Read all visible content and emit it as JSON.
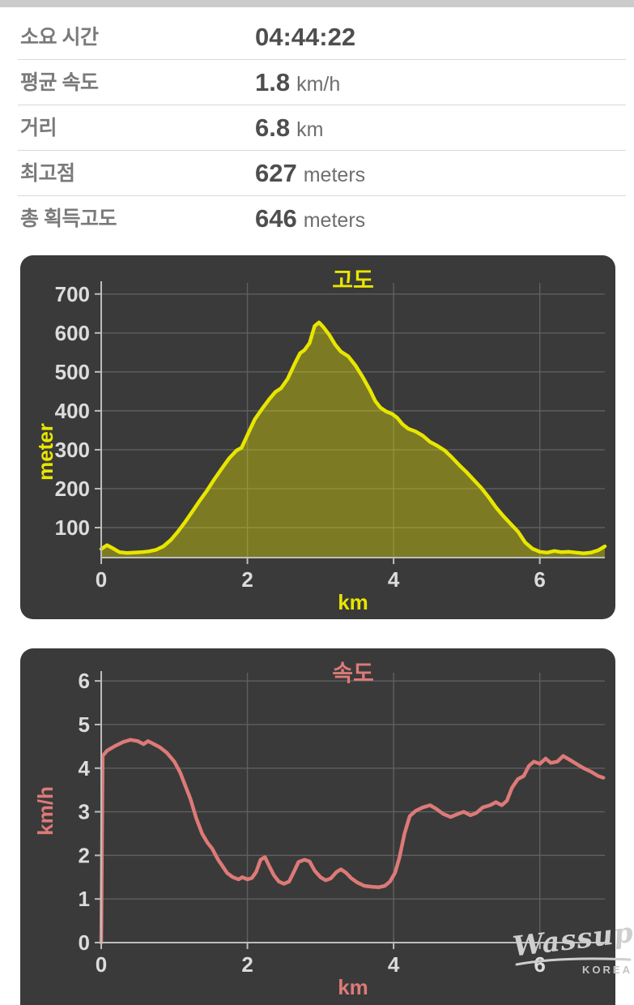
{
  "stats": {
    "rows": [
      {
        "label": "소요 시간",
        "value": "04:44:22",
        "unit": ""
      },
      {
        "label": "평균 속도",
        "value": "1.8",
        "unit": "km/h"
      },
      {
        "label": "거리",
        "value": "6.8",
        "unit": "km"
      },
      {
        "label": "최고점",
        "value": "627",
        "unit": "meters"
      },
      {
        "label": "총 획득고도",
        "value": "646",
        "unit": "meters"
      }
    ]
  },
  "watermark": {
    "line1": "Wassup",
    "line2": "KOREA"
  },
  "colors": {
    "panel_bg": "#3a3a3a",
    "elevation_accent": "#e8e600",
    "speed_accent": "#dd7a78",
    "grid": "#5f5f5f",
    "axis": "#bdbdbd",
    "tick_label": "#dcdcdc"
  },
  "chart_data": [
    {
      "type": "area",
      "title": "고도",
      "xlabel": "km",
      "ylabel": "meter",
      "legend": "none",
      "grid": true,
      "accent": "#e8e600",
      "fill": "rgba(232,230,0,0.38)",
      "grid_color": "#5f5f5f",
      "axis_color": "#bdbdbd",
      "tick_color": "#dcdcdc",
      "xlim": [
        0,
        6.89
      ],
      "ylim": [
        23,
        712
      ],
      "xticks": [
        0,
        2,
        4,
        6
      ],
      "yticks": [
        100,
        200,
        300,
        400,
        500,
        600,
        700
      ],
      "x": [
        0,
        0.08,
        0.15,
        0.25,
        0.35,
        0.45,
        0.55,
        0.65,
        0.75,
        0.85,
        0.95,
        1.05,
        1.15,
        1.25,
        1.35,
        1.45,
        1.55,
        1.65,
        1.75,
        1.85,
        1.92,
        2.0,
        2.1,
        2.2,
        2.3,
        2.38,
        2.46,
        2.55,
        2.65,
        2.72,
        2.78,
        2.85,
        2.92,
        2.98,
        3.04,
        3.12,
        3.2,
        3.28,
        3.38,
        3.48,
        3.58,
        3.68,
        3.75,
        3.82,
        3.9,
        3.98,
        4.05,
        4.12,
        4.2,
        4.3,
        4.4,
        4.5,
        4.6,
        4.7,
        4.8,
        4.9,
        5.0,
        5.1,
        5.2,
        5.3,
        5.4,
        5.5,
        5.6,
        5.7,
        5.8,
        5.9,
        6.0,
        6.1,
        6.2,
        6.3,
        6.4,
        6.5,
        6.6,
        6.7,
        6.8,
        6.89
      ],
      "y": [
        45,
        55,
        48,
        37,
        35,
        36,
        37,
        39,
        43,
        52,
        68,
        90,
        115,
        142,
        170,
        196,
        225,
        252,
        278,
        298,
        305,
        338,
        378,
        405,
        430,
        448,
        458,
        482,
        522,
        548,
        556,
        574,
        618,
        627,
        615,
        595,
        570,
        552,
        540,
        516,
        486,
        452,
        425,
        408,
        398,
        392,
        382,
        366,
        354,
        347,
        336,
        320,
        310,
        298,
        280,
        260,
        242,
        222,
        202,
        178,
        152,
        130,
        110,
        90,
        62,
        46,
        38,
        36,
        40,
        37,
        38,
        36,
        34,
        36,
        42,
        52
      ]
    },
    {
      "type": "line",
      "title": "속도",
      "xlabel": "km",
      "ylabel": "km/h",
      "legend": "none",
      "grid": true,
      "accent": "#dd7a78",
      "fill": "none",
      "grid_color": "#5f5f5f",
      "axis_color": "#bdbdbd",
      "tick_color": "#dcdcdc",
      "xlim": [
        0,
        6.89
      ],
      "ylim": [
        0,
        6.04
      ],
      "xticks": [
        0,
        2,
        4,
        6
      ],
      "yticks": [
        0,
        1,
        2,
        3,
        4,
        5,
        6
      ],
      "x": [
        0,
        0.02,
        0.08,
        0.18,
        0.3,
        0.4,
        0.5,
        0.58,
        0.64,
        0.7,
        0.8,
        0.9,
        1.0,
        1.08,
        1.15,
        1.22,
        1.3,
        1.38,
        1.45,
        1.52,
        1.6,
        1.66,
        1.72,
        1.8,
        1.88,
        1.93,
        2.0,
        2.06,
        2.12,
        2.18,
        2.24,
        2.3,
        2.36,
        2.43,
        2.5,
        2.57,
        2.63,
        2.7,
        2.78,
        2.85,
        2.92,
        3.0,
        3.07,
        3.14,
        3.22,
        3.28,
        3.35,
        3.42,
        3.5,
        3.6,
        3.7,
        3.8,
        3.88,
        3.95,
        4.02,
        4.08,
        4.15,
        4.22,
        4.3,
        4.4,
        4.5,
        4.58,
        4.68,
        4.78,
        4.88,
        4.96,
        5.05,
        5.13,
        5.22,
        5.32,
        5.4,
        5.48,
        5.55,
        5.62,
        5.7,
        5.78,
        5.85,
        5.92,
        6.0,
        6.08,
        6.15,
        6.24,
        6.32,
        6.4,
        6.5,
        6.6,
        6.7,
        6.8,
        6.87
      ],
      "y": [
        0,
        4.28,
        4.4,
        4.5,
        4.6,
        4.65,
        4.62,
        4.55,
        4.62,
        4.57,
        4.48,
        4.35,
        4.15,
        3.9,
        3.6,
        3.3,
        2.85,
        2.5,
        2.3,
        2.15,
        1.9,
        1.75,
        1.6,
        1.5,
        1.45,
        1.5,
        1.45,
        1.48,
        1.62,
        1.9,
        1.96,
        1.75,
        1.55,
        1.4,
        1.35,
        1.4,
        1.6,
        1.85,
        1.9,
        1.86,
        1.65,
        1.5,
        1.43,
        1.47,
        1.62,
        1.68,
        1.6,
        1.48,
        1.38,
        1.3,
        1.28,
        1.27,
        1.3,
        1.4,
        1.6,
        1.95,
        2.5,
        2.9,
        3.02,
        3.1,
        3.15,
        3.07,
        2.95,
        2.88,
        2.95,
        3.0,
        2.92,
        2.97,
        3.1,
        3.15,
        3.22,
        3.15,
        3.25,
        3.55,
        3.75,
        3.82,
        4.05,
        4.15,
        4.1,
        4.22,
        4.12,
        4.15,
        4.28,
        4.2,
        4.1,
        4.0,
        3.92,
        3.82,
        3.78
      ]
    }
  ]
}
